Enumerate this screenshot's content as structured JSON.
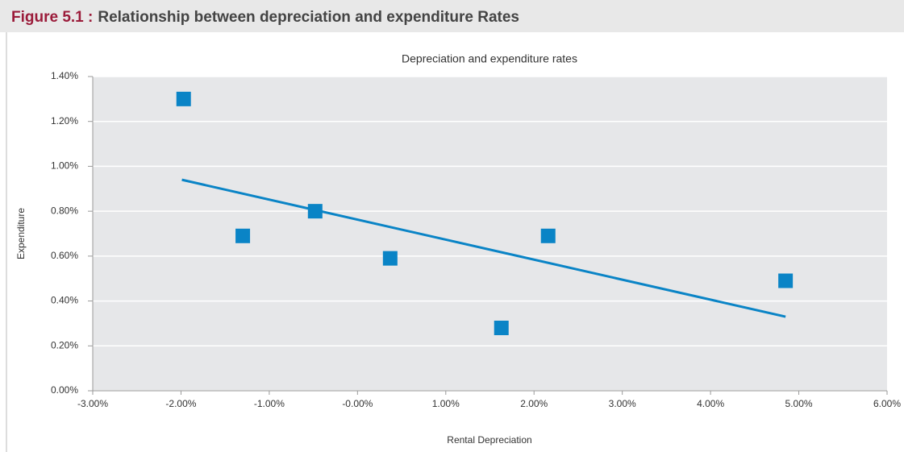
{
  "header": {
    "figure": "Figure 5.1 :",
    "title": "Relationship between depreciation and expenditure Rates"
  },
  "chart_data": {
    "type": "scatter",
    "title": "Depreciation and expenditure rates",
    "x_label": "Rental Depreciation",
    "y_label": "Expenditure",
    "x": [
      -1.97,
      -1.3,
      -0.48,
      0.37,
      1.63,
      2.16,
      4.85
    ],
    "values": [
      1.3,
      0.69,
      0.8,
      0.59,
      0.28,
      0.69,
      0.49
    ],
    "color": "#0a84c6",
    "trendline": {
      "x": [
        -1.99,
        4.85
      ],
      "y": [
        0.94,
        0.33
      ]
    },
    "xlim": [
      -3,
      6
    ],
    "xticks": [
      {
        "value": -3,
        "label": "-3.00%"
      },
      {
        "value": -2,
        "label": "-2.00%"
      },
      {
        "value": -1,
        "label": "-1.00%"
      },
      {
        "value": 0,
        "label": "-0.00%"
      },
      {
        "value": 1,
        "label": "1.00%"
      },
      {
        "value": 2,
        "label": "2.00%"
      },
      {
        "value": 3,
        "label": "3.00%"
      },
      {
        "value": 4,
        "label": "4.00%"
      },
      {
        "value": 5,
        "label": "5.00%"
      },
      {
        "value": 6,
        "label": "6.00%"
      }
    ],
    "ylim": [
      0,
      1.4
    ],
    "yticks": [
      {
        "value": 0,
        "label": "0.00%"
      },
      {
        "value": 0.2,
        "label": "0.20%"
      },
      {
        "value": 0.4,
        "label": "0.40%"
      },
      {
        "value": 0.6,
        "label": "0.60%"
      },
      {
        "value": 0.8,
        "label": "0.80%"
      },
      {
        "value": 1.0,
        "label": "1.00%"
      },
      {
        "value": 1.2,
        "label": "1.20%"
      },
      {
        "value": 1.4,
        "label": "1.40%"
      }
    ],
    "grid": true
  }
}
